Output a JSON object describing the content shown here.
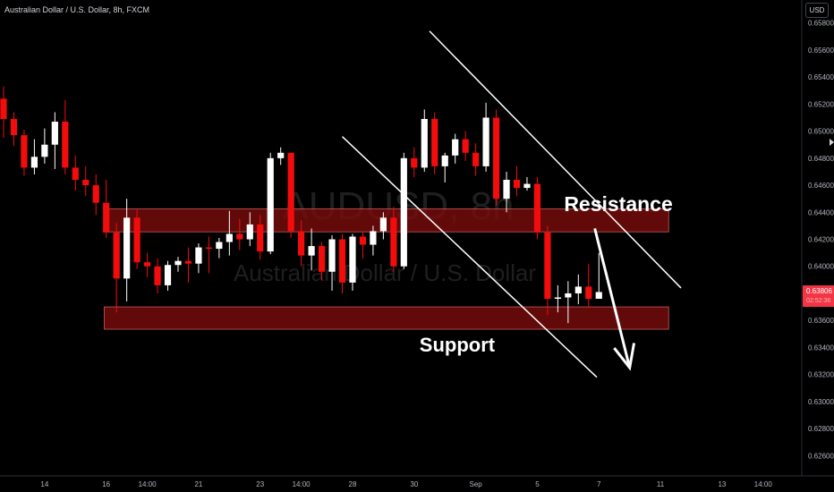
{
  "header": {
    "title": "Australian Dollar / U.S. Dollar, 8h, FXCM",
    "currency": "USD"
  },
  "watermark": {
    "symbol": "AUDUSD, 8h",
    "name": "Australian Dollar / U.S. Dollar"
  },
  "colors": {
    "background": "#000000",
    "up_candle": "#ffffff",
    "down_candle": "#f20c0c",
    "zone_fill": "#7a0c0c",
    "price_label": "#f23645"
  },
  "price_label": {
    "value": "0.63806",
    "countdown": "02:52:36"
  },
  "chart_data": {
    "type": "candlestick",
    "title": "AUDUSD, 8h",
    "ylim": [
      0.6245,
      0.6597
    ],
    "y_ticks": [
      "0.62600",
      "0.62800",
      "0.63000",
      "0.63200",
      "0.63400",
      "0.63600",
      "0.63800",
      "0.64000",
      "0.64200",
      "0.64400",
      "0.64600",
      "0.64800",
      "0.65000",
      "0.65200",
      "0.65400",
      "0.65600",
      "0.65800"
    ],
    "x_ticks": [
      {
        "label": "14",
        "i": 4
      },
      {
        "label": "16",
        "i": 10
      },
      {
        "label": "14:00",
        "i": 14
      },
      {
        "label": "21",
        "i": 19
      },
      {
        "label": "23",
        "i": 25
      },
      {
        "label": "14:00",
        "i": 29
      },
      {
        "label": "28",
        "i": 34
      },
      {
        "label": "30",
        "i": 40
      },
      {
        "label": "Sep",
        "i": 46
      },
      {
        "label": "5",
        "i": 52
      },
      {
        "label": "7",
        "i": 58
      },
      {
        "label": "11",
        "i": 64
      },
      {
        "label": "13",
        "i": 70
      },
      {
        "label": "14:00",
        "i": 74
      }
    ],
    "candles": [
      {
        "o": 0.6524,
        "h": 0.6533,
        "l": 0.6495,
        "c": 0.6509
      },
      {
        "o": 0.6509,
        "h": 0.6514,
        "l": 0.6489,
        "c": 0.6497
      },
      {
        "o": 0.6497,
        "h": 0.6501,
        "l": 0.6467,
        "c": 0.6473
      },
      {
        "o": 0.6473,
        "h": 0.6494,
        "l": 0.6468,
        "c": 0.6481
      },
      {
        "o": 0.6481,
        "h": 0.6502,
        "l": 0.6476,
        "c": 0.649
      },
      {
        "o": 0.649,
        "h": 0.6514,
        "l": 0.6472,
        "c": 0.6507
      },
      {
        "o": 0.6507,
        "h": 0.6523,
        "l": 0.6468,
        "c": 0.6473
      },
      {
        "o": 0.6473,
        "h": 0.6482,
        "l": 0.6456,
        "c": 0.6464
      },
      {
        "o": 0.6464,
        "h": 0.6474,
        "l": 0.6452,
        "c": 0.646
      },
      {
        "o": 0.646,
        "h": 0.6468,
        "l": 0.6438,
        "c": 0.6447
      },
      {
        "o": 0.6447,
        "h": 0.6464,
        "l": 0.6421,
        "c": 0.6425
      },
      {
        "o": 0.6425,
        "h": 0.6432,
        "l": 0.6366,
        "c": 0.6391
      },
      {
        "o": 0.6391,
        "h": 0.645,
        "l": 0.6374,
        "c": 0.6436
      },
      {
        "o": 0.6436,
        "h": 0.6442,
        "l": 0.6398,
        "c": 0.6403
      },
      {
        "o": 0.6403,
        "h": 0.641,
        "l": 0.6392,
        "c": 0.64
      },
      {
        "o": 0.64,
        "h": 0.6406,
        "l": 0.638,
        "c": 0.6386
      },
      {
        "o": 0.6386,
        "h": 0.6404,
        "l": 0.6382,
        "c": 0.6401
      },
      {
        "o": 0.6401,
        "h": 0.6407,
        "l": 0.6396,
        "c": 0.6404
      },
      {
        "o": 0.6404,
        "h": 0.6414,
        "l": 0.6388,
        "c": 0.6402
      },
      {
        "o": 0.6402,
        "h": 0.6417,
        "l": 0.6395,
        "c": 0.6414
      },
      {
        "o": 0.6414,
        "h": 0.6422,
        "l": 0.6395,
        "c": 0.6413
      },
      {
        "o": 0.6413,
        "h": 0.6421,
        "l": 0.6406,
        "c": 0.6418
      },
      {
        "o": 0.6418,
        "h": 0.6441,
        "l": 0.6408,
        "c": 0.6424
      },
      {
        "o": 0.6424,
        "h": 0.6435,
        "l": 0.6412,
        "c": 0.642
      },
      {
        "o": 0.642,
        "h": 0.644,
        "l": 0.6415,
        "c": 0.6431
      },
      {
        "o": 0.6431,
        "h": 0.6438,
        "l": 0.6405,
        "c": 0.6411
      },
      {
        "o": 0.6411,
        "h": 0.6484,
        "l": 0.6409,
        "c": 0.648
      },
      {
        "o": 0.648,
        "h": 0.6488,
        "l": 0.6475,
        "c": 0.6484
      },
      {
        "o": 0.6484,
        "h": 0.6484,
        "l": 0.6421,
        "c": 0.6426
      },
      {
        "o": 0.6426,
        "h": 0.6434,
        "l": 0.64,
        "c": 0.6408
      },
      {
        "o": 0.6408,
        "h": 0.6428,
        "l": 0.6397,
        "c": 0.6415
      },
      {
        "o": 0.6415,
        "h": 0.6418,
        "l": 0.639,
        "c": 0.6396
      },
      {
        "o": 0.6396,
        "h": 0.6423,
        "l": 0.6382,
        "c": 0.642
      },
      {
        "o": 0.642,
        "h": 0.6424,
        "l": 0.638,
        "c": 0.6388
      },
      {
        "o": 0.6388,
        "h": 0.6424,
        "l": 0.6382,
        "c": 0.6422
      },
      {
        "o": 0.6422,
        "h": 0.6426,
        "l": 0.6406,
        "c": 0.6416
      },
      {
        "o": 0.6416,
        "h": 0.643,
        "l": 0.6408,
        "c": 0.6426
      },
      {
        "o": 0.6426,
        "h": 0.644,
        "l": 0.642,
        "c": 0.6436
      },
      {
        "o": 0.6436,
        "h": 0.6444,
        "l": 0.6396,
        "c": 0.64
      },
      {
        "o": 0.64,
        "h": 0.6484,
        "l": 0.6398,
        "c": 0.648
      },
      {
        "o": 0.648,
        "h": 0.6488,
        "l": 0.6466,
        "c": 0.6473
      },
      {
        "o": 0.6473,
        "h": 0.6516,
        "l": 0.647,
        "c": 0.6509
      },
      {
        "o": 0.6509,
        "h": 0.6514,
        "l": 0.6468,
        "c": 0.6474
      },
      {
        "o": 0.6474,
        "h": 0.6484,
        "l": 0.6462,
        "c": 0.6482
      },
      {
        "o": 0.6482,
        "h": 0.6498,
        "l": 0.6476,
        "c": 0.6494
      },
      {
        "o": 0.6494,
        "h": 0.65,
        "l": 0.6478,
        "c": 0.6484
      },
      {
        "o": 0.6484,
        "h": 0.6491,
        "l": 0.6467,
        "c": 0.6474
      },
      {
        "o": 0.6474,
        "h": 0.6521,
        "l": 0.647,
        "c": 0.651
      },
      {
        "o": 0.651,
        "h": 0.6516,
        "l": 0.6445,
        "c": 0.645
      },
      {
        "o": 0.645,
        "h": 0.647,
        "l": 0.644,
        "c": 0.6464
      },
      {
        "o": 0.6464,
        "h": 0.6474,
        "l": 0.6452,
        "c": 0.6458
      },
      {
        "o": 0.6458,
        "h": 0.6466,
        "l": 0.6456,
        "c": 0.6461
      },
      {
        "o": 0.6461,
        "h": 0.6466,
        "l": 0.642,
        "c": 0.6425
      },
      {
        "o": 0.6425,
        "h": 0.643,
        "l": 0.6364,
        "c": 0.6376
      },
      {
        "o": 0.6376,
        "h": 0.6386,
        "l": 0.6366,
        "c": 0.6377
      },
      {
        "o": 0.6377,
        "h": 0.6389,
        "l": 0.6358,
        "c": 0.638
      },
      {
        "o": 0.638,
        "h": 0.6394,
        "l": 0.6372,
        "c": 0.6385
      },
      {
        "o": 0.6385,
        "h": 0.6402,
        "l": 0.637,
        "c": 0.6376
      },
      {
        "o": 0.6376,
        "h": 0.641,
        "l": 0.6376,
        "c": 0.6381
      }
    ],
    "zones": [
      {
        "name": "resistance-zone",
        "y1": 0.64255,
        "y2": 0.64425,
        "i_start": 9.8,
        "i_end": 64.8
      },
      {
        "name": "support-zone",
        "y1": 0.63535,
        "y2": 0.637,
        "i_start": 9.8,
        "i_end": 64.8
      }
    ],
    "trend_lines": [
      {
        "name": "channel-upper",
        "i1": 41.5,
        "p1": 0.6574,
        "i2": 66.0,
        "p2": 0.6384
      },
      {
        "name": "channel-lower",
        "i1": 33.0,
        "p1": 0.6496,
        "i2": 57.8,
        "p2": 0.6318
      }
    ],
    "forecast_arrow": {
      "i1": 57.6,
      "p1": 0.6428,
      "i2": 61.0,
      "p2": 0.6325
    },
    "annotations": [
      {
        "text": "Resistance",
        "i": 59.9,
        "p": 0.6441
      },
      {
        "text": "Support",
        "i": 44.2,
        "p": 0.6337
      }
    ],
    "last_price": 0.63806,
    "grid": false
  }
}
